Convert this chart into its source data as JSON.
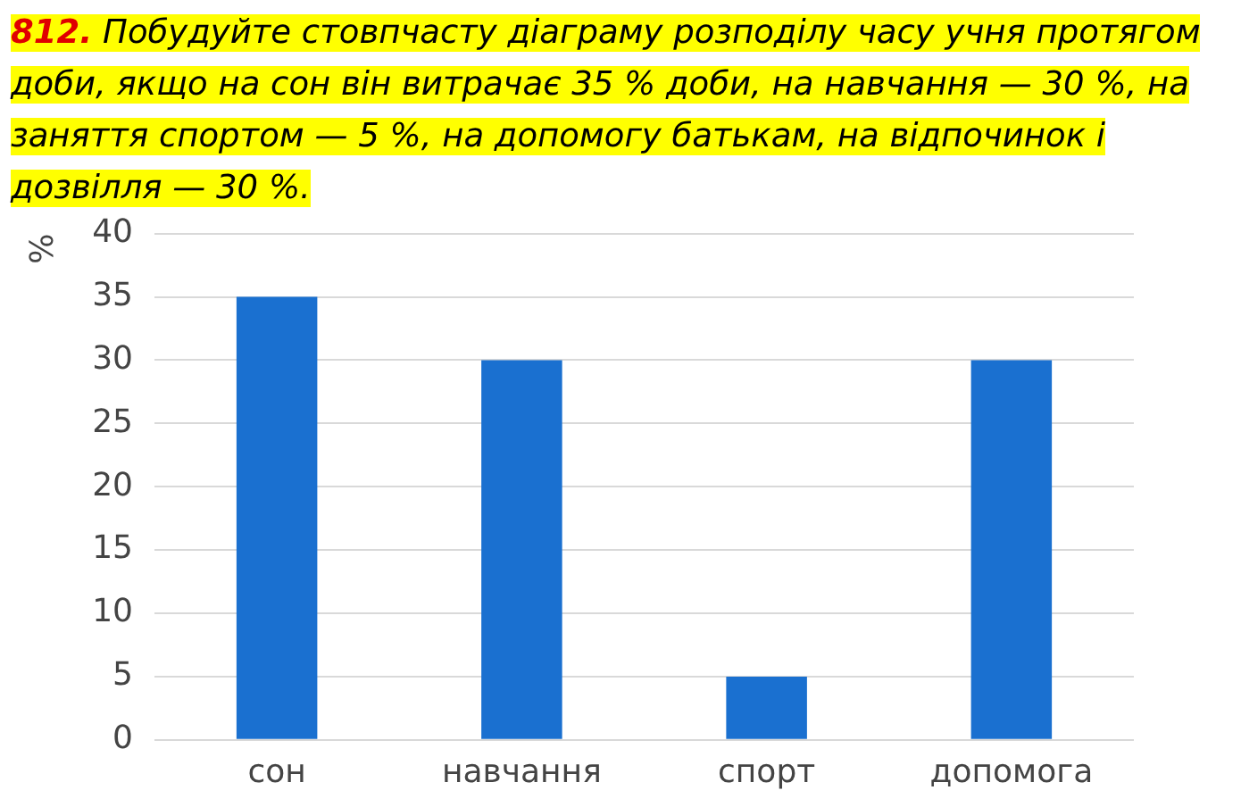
{
  "chart_data": {
    "type": "bar",
    "title": "812. Побудуйте стовпчасту діаграму розподілу часу учня протягом доби, якщо на сон він витрачає 35 % доби, на навчання — 30 %, на заняття спортом — 5 %, на допомогу батькам, на відпочинок і дозвілля — 30 %.",
    "ylabel": "%",
    "categories": [
      "сон",
      "навчання",
      "спорт",
      "допомога"
    ],
    "values": [
      35,
      30,
      5,
      30
    ],
    "color": "#1a70d0",
    "ylim": [
      0,
      40
    ],
    "yticks": [
      0,
      5,
      10,
      15,
      20,
      25,
      30,
      35,
      40
    ],
    "grid": "y",
    "legend": false
  }
}
